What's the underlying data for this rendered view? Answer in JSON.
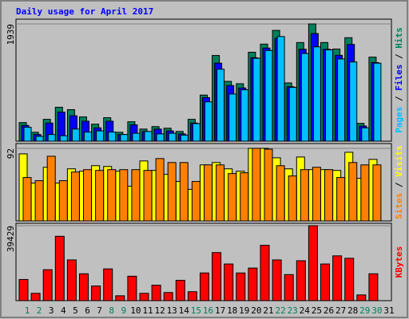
{
  "chart_data": {
    "type": "bar",
    "title": "Daily usage for April 2017",
    "categories": [
      "1",
      "2",
      "3",
      "4",
      "5",
      "6",
      "7",
      "8",
      "9",
      "10",
      "11",
      "12",
      "13",
      "14",
      "15",
      "16",
      "17",
      "18",
      "19",
      "20",
      "21",
      "22",
      "23",
      "24",
      "25",
      "26",
      "27",
      "28",
      "29",
      "30",
      "31"
    ],
    "category_colors": [
      "#00805c",
      "#00805c",
      "#000000",
      "#000000",
      "#000000",
      "#000000",
      "#000000",
      "#00805c",
      "#00805c",
      "#000000",
      "#000000",
      "#000000",
      "#000000",
      "#000000",
      "#00805c",
      "#00805c",
      "#000000",
      "#000000",
      "#000000",
      "#000000",
      "#000000",
      "#00805c",
      "#00805c",
      "#000000",
      "#000000",
      "#000000",
      "#000000",
      "#000000",
      "#00805c",
      "#00805c",
      "#000000"
    ],
    "panels": [
      {
        "ylim": [
          0,
          1939
        ],
        "yticks": [
          1939
        ],
        "legend_separator": " / ",
        "series": [
          {
            "name": "Hits",
            "color": "#00805c",
            "values": [
              307,
              147,
              361,
              561,
              521,
              401,
              281,
              388,
              147,
              321,
              200,
              241,
              214,
              160,
              361,
              762,
              1417,
              989,
              950,
              1471,
              1605,
              1832,
              963,
              1631,
              1939,
              1631,
              1524,
              1711,
              294,
              1390,
              null
            ]
          },
          {
            "name": "Files",
            "color": "#0000ff",
            "values": [
              260,
              110,
              300,
              480,
              420,
              330,
              220,
              330,
              110,
              270,
              160,
              200,
              170,
              120,
              300,
              720,
              1290,
              920,
              880,
              1380,
              1540,
              1700,
              900,
              1520,
              1780,
              1520,
              1420,
              1600,
              250,
              1300,
              null
            ]
          },
          {
            "name": "Pages",
            "color": "#00c0ff",
            "values": [
              230,
              80,
              110,
              90,
              200,
              150,
              170,
              150,
              110,
              130,
              160,
              120,
              130,
              100,
              290,
              650,
              1190,
              780,
              850,
              1370,
              1500,
              1730,
              890,
              1450,
              1560,
              1510,
              1360,
              1310,
              220,
              1290,
              null
            ]
          }
        ]
      },
      {
        "ylim": [
          0,
          92
        ],
        "yticks": [
          92
        ],
        "legend_separator": " / ",
        "series": [
          {
            "name": "Visits",
            "color": "#ffff00",
            "values": [
              85,
              48,
              68,
              48,
              66,
              63,
              70,
              69,
              63,
              44,
              76,
              64,
              59,
              50,
              40,
              71,
              74,
              66,
              63,
              92,
              92,
              80,
              66,
              81,
              65,
              65,
              64,
              87,
              54,
              78,
              null
            ]
          },
          {
            "name": "Sites",
            "color": "#ff8000",
            "values": [
              55,
              51,
              82,
              51,
              62,
              65,
              64,
              65,
              65,
              65,
              64,
              79,
              74,
              74,
              50,
              71,
              71,
              60,
              61,
              92,
              91,
              70,
              57,
              65,
              68,
              65,
              55,
              74,
              71,
              71,
              null
            ]
          }
        ]
      },
      {
        "ylim": [
          0,
          39429
        ],
        "yticks": [
          39429
        ],
        "legend_separator": " / ",
        "series": [
          {
            "name": "KBytes",
            "color": "#ff0000",
            "values": [
              11143,
              3857,
              16286,
              33857,
              21429,
              14143,
              7714,
              16714,
              2571,
              12857,
              3857,
              8143,
              4286,
              10714,
              4714,
              14571,
              25286,
              19286,
              14571,
              17143,
              29143,
              21429,
              13714,
              21000,
              39429,
              19286,
              23571,
              22286,
              3000,
              14143,
              null
            ]
          }
        ]
      }
    ]
  }
}
